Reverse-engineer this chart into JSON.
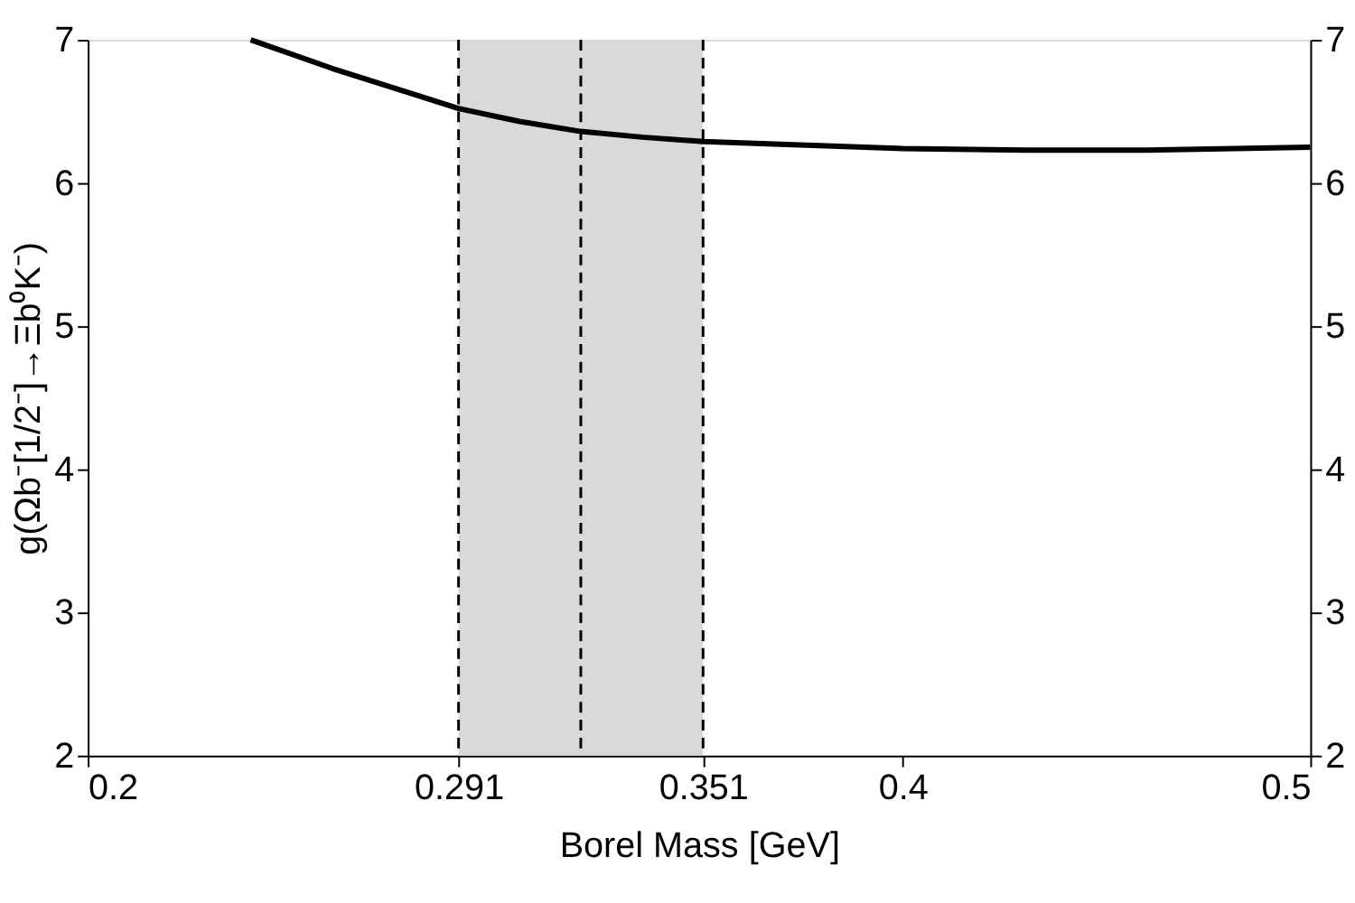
{
  "chart_data": {
    "type": "line",
    "xlabel": "Borel Mass [GeV]",
    "ylabel": "g(Ωb⁻[1/2⁻]→Ξb⁰K⁻)",
    "x": [
      0.24,
      0.26,
      0.28,
      0.291,
      0.306,
      0.321,
      0.336,
      0.351,
      0.37,
      0.4,
      0.43,
      0.46,
      0.5
    ],
    "series": [
      {
        "color": "#000000",
        "values": [
          7.0,
          6.8,
          6.62,
          6.52,
          6.43,
          6.36,
          6.32,
          6.29,
          6.27,
          6.24,
          6.23,
          6.23,
          6.25
        ]
      }
    ],
    "xlim": [
      0.2,
      0.5
    ],
    "xticks": [
      0.2,
      0.291,
      0.351,
      0.4,
      0.5
    ],
    "ylim": [
      2,
      7
    ],
    "yticks": [
      2,
      3,
      4,
      5,
      6,
      7
    ],
    "y2lim": [
      2,
      7
    ],
    "y2ticks": [
      2,
      3,
      4,
      5,
      6,
      7
    ],
    "bands": [
      {
        "axis": "x",
        "from": 0.291,
        "to": 0.351,
        "color": "#d9d9d9"
      }
    ],
    "ref_lines": [
      {
        "axis": "x",
        "value": 0.291,
        "line_style": "dashed",
        "color": "#000000"
      },
      {
        "axis": "x",
        "value": 0.321,
        "line_style": "dashed",
        "color": "#000000"
      },
      {
        "axis": "x",
        "value": 0.351,
        "line_style": "dashed",
        "color": "#000000"
      }
    ],
    "grid": false,
    "line_style": "solid",
    "marker": "none"
  }
}
